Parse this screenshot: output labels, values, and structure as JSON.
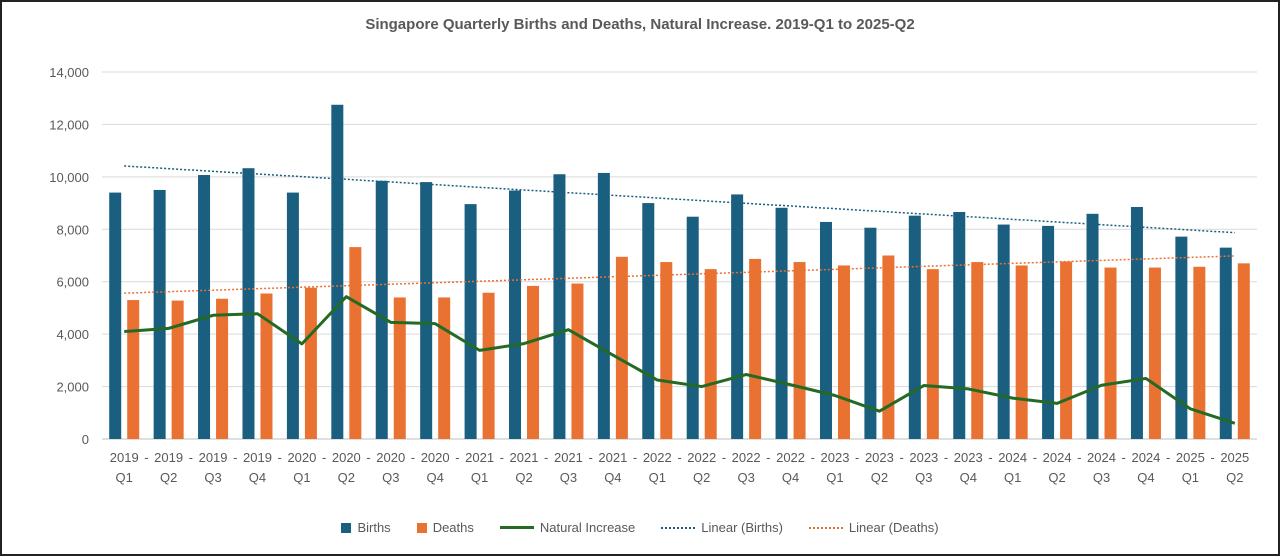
{
  "chart_data": {
    "type": "bar",
    "title": "Singapore Quarterly Births and Deaths, Natural Increase. 2019-Q1 to 2025-Q2",
    "categories": [
      [
        "2019",
        "Q1"
      ],
      [
        "2019",
        "Q2"
      ],
      [
        "2019",
        "Q3"
      ],
      [
        "2019",
        "Q4"
      ],
      [
        "2020",
        "Q1"
      ],
      [
        "2020",
        "Q2"
      ],
      [
        "2020",
        "Q3"
      ],
      [
        "2020",
        "Q4"
      ],
      [
        "2021",
        "Q1"
      ],
      [
        "2021",
        "Q2"
      ],
      [
        "2021",
        "Q3"
      ],
      [
        "2021",
        "Q4"
      ],
      [
        "2022",
        "Q1"
      ],
      [
        "2022",
        "Q2"
      ],
      [
        "2022",
        "Q3"
      ],
      [
        "2022",
        "Q4"
      ],
      [
        "2023",
        "Q1"
      ],
      [
        "2023",
        "Q2"
      ],
      [
        "2023",
        "Q3"
      ],
      [
        "2023",
        "Q4"
      ],
      [
        "2024",
        "Q1"
      ],
      [
        "2024",
        "Q2"
      ],
      [
        "2024",
        "Q3"
      ],
      [
        "2024",
        "Q4"
      ],
      [
        "2025",
        "Q1"
      ],
      [
        "2025",
        "Q2"
      ]
    ],
    "series": [
      {
        "name": "Births",
        "type": "bar",
        "color": "#1a5e80",
        "values": [
          9400,
          9500,
          10070,
          10330,
          9400,
          12750,
          9850,
          9800,
          8960,
          9480,
          10100,
          10150,
          9000,
          8480,
          9330,
          8820,
          8280,
          8060,
          8520,
          8660,
          8180,
          8130,
          8590,
          8850,
          7720,
          7300
        ]
      },
      {
        "name": "Deaths",
        "type": "bar",
        "color": "#e97132",
        "values": [
          5300,
          5280,
          5350,
          5550,
          5770,
          7320,
          5400,
          5400,
          5580,
          5840,
          5930,
          6950,
          6750,
          6480,
          6870,
          6750,
          6620,
          7000,
          6480,
          6750,
          6620,
          6770,
          6540,
          6540,
          6570,
          6700
        ]
      },
      {
        "name": "Natural Increase",
        "type": "line",
        "color": "#236a24",
        "values": [
          4100,
          4220,
          4720,
          4780,
          3630,
          5430,
          4450,
          4400,
          3380,
          3640,
          4170,
          3200,
          2250,
          2000,
          2460,
          2070,
          1660,
          1060,
          2040,
          1910,
          1560,
          1360,
          2050,
          2310,
          1150,
          600
        ]
      }
    ],
    "trendlines": [
      {
        "name": "Linear (Births)",
        "of": "Births",
        "color": "#1a5e80"
      },
      {
        "name": "Linear (Deaths)",
        "of": "Deaths",
        "color": "#e97132"
      }
    ],
    "yticks": [
      "0",
      "2,000",
      "4,000",
      "6,000",
      "8,000",
      "10,000",
      "12,000",
      "14,000"
    ],
    "ylim": [
      0,
      14000
    ],
    "grid": true,
    "legend_position": "bottom"
  }
}
